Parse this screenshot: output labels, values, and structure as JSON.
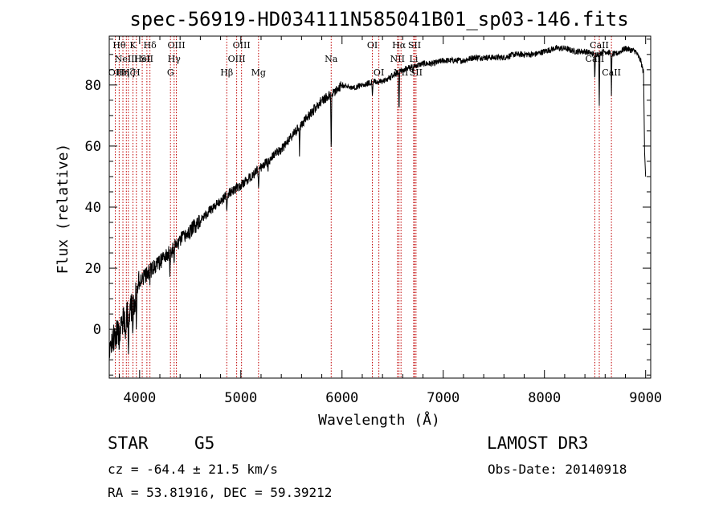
{
  "chart_data": {
    "type": "line",
    "title": "spec-56919-HD034111N585041B01_sp03-146.fits",
    "xlabel": "Wavelength (Å)",
    "ylabel": "Flux (relative)",
    "xlim": [
      3700,
      9050
    ],
    "ylim": [
      -16,
      96
    ],
    "xticks": [
      4000,
      5000,
      6000,
      7000,
      8000,
      9000
    ],
    "yticks": [
      0,
      20,
      40,
      60,
      80
    ],
    "xtick_labels": [
      "4000",
      "5000",
      "6000",
      "7000",
      "8000",
      "9000"
    ],
    "ytick_labels": [
      "0",
      "20",
      "40",
      "60",
      "80"
    ],
    "x_minor_step": 200,
    "y_minor_step": 5,
    "series": [
      {
        "name": "spectrum",
        "anchors": [
          [
            3700,
            -8
          ],
          [
            3750,
            -2
          ],
          [
            3800,
            0
          ],
          [
            3850,
            3
          ],
          [
            3900,
            5
          ],
          [
            3950,
            10
          ],
          [
            4000,
            16
          ],
          [
            4100,
            19
          ],
          [
            4200,
            22
          ],
          [
            4300,
            25
          ],
          [
            4400,
            29
          ],
          [
            4500,
            32
          ],
          [
            4600,
            36
          ],
          [
            4700,
            39
          ],
          [
            4800,
            42
          ],
          [
            4900,
            45
          ],
          [
            5000,
            47
          ],
          [
            5100,
            50
          ],
          [
            5200,
            53
          ],
          [
            5300,
            56
          ],
          [
            5400,
            59
          ],
          [
            5500,
            63
          ],
          [
            5600,
            67
          ],
          [
            5700,
            71
          ],
          [
            5800,
            75
          ],
          [
            5900,
            77
          ],
          [
            6000,
            80
          ],
          [
            6100,
            79
          ],
          [
            6200,
            80
          ],
          [
            6300,
            81
          ],
          [
            6400,
            81
          ],
          [
            6500,
            83
          ],
          [
            6600,
            85
          ],
          [
            6700,
            86
          ],
          [
            6800,
            87
          ],
          [
            6900,
            87
          ],
          [
            7000,
            88
          ],
          [
            7100,
            88
          ],
          [
            7200,
            88
          ],
          [
            7300,
            89
          ],
          [
            7400,
            89
          ],
          [
            7500,
            89
          ],
          [
            7600,
            89
          ],
          [
            7700,
            90
          ],
          [
            7800,
            90
          ],
          [
            7900,
            90
          ],
          [
            8000,
            91
          ],
          [
            8100,
            92
          ],
          [
            8200,
            92
          ],
          [
            8300,
            91
          ],
          [
            8400,
            91
          ],
          [
            8500,
            90
          ],
          [
            8600,
            91
          ],
          [
            8700,
            90
          ],
          [
            8800,
            92
          ],
          [
            8900,
            91
          ],
          [
            8950,
            88
          ],
          [
            8980,
            84
          ]
        ],
        "absorption": [
          [
            3760,
            6
          ],
          [
            3800,
            7
          ],
          [
            3860,
            8
          ],
          [
            3890,
            9
          ],
          [
            3934,
            12
          ],
          [
            3968,
            11
          ],
          [
            4101,
            4
          ],
          [
            4300,
            6
          ],
          [
            4340,
            4
          ],
          [
            4861,
            7
          ],
          [
            5175,
            5
          ],
          [
            5270,
            3
          ],
          [
            5580,
            9
          ],
          [
            5893,
            20
          ],
          [
            6300,
            5
          ],
          [
            6563,
            14
          ],
          [
            6700,
            3
          ],
          [
            8498,
            10
          ],
          [
            8542,
            18
          ],
          [
            8662,
            14
          ]
        ]
      }
    ],
    "lines": [
      {
        "wl": 3760,
        "label": "OII",
        "row": 2
      },
      {
        "wl": 3798,
        "label": "Hθ",
        "row": 0
      },
      {
        "wl": 3835,
        "label": "Hη",
        "row": 2
      },
      {
        "wl": 3869,
        "label": "NeIII",
        "row": 1
      },
      {
        "wl": 3889,
        "label": "Hζ",
        "row": 2
      },
      {
        "wl": 3934,
        "label": "K",
        "row": 0
      },
      {
        "wl": 3968,
        "label": "H",
        "row": 2
      },
      {
        "wl": 4026,
        "label": "HeI",
        "row": 1
      },
      {
        "wl": 4072,
        "label": "SII",
        "row": 1
      },
      {
        "wl": 4102,
        "label": "Hδ",
        "row": 0
      },
      {
        "wl": 4305,
        "label": "G",
        "row": 2
      },
      {
        "wl": 4341,
        "label": "Hγ",
        "row": 1
      },
      {
        "wl": 4363,
        "label": "OIII",
        "row": 0
      },
      {
        "wl": 4861,
        "label": "Hβ",
        "row": 2
      },
      {
        "wl": 4959,
        "label": "OIII",
        "row": 1
      },
      {
        "wl": 5007,
        "label": "OIII",
        "row": 0
      },
      {
        "wl": 5175,
        "label": "Mg",
        "row": 2
      },
      {
        "wl": 5893,
        "label": "Na",
        "row": 1
      },
      {
        "wl": 6300,
        "label": "OI",
        "row": 0
      },
      {
        "wl": 6364,
        "label": "OI",
        "row": 2
      },
      {
        "wl": 6548,
        "label": "NII",
        "row": 1
      },
      {
        "wl": 6563,
        "label": "Hα",
        "row": 0
      },
      {
        "wl": 6583,
        "label": "NII",
        "row": 2
      },
      {
        "wl": 6708,
        "label": "Li",
        "row": 1
      },
      {
        "wl": 6716,
        "label": "SII",
        "row": 0
      },
      {
        "wl": 6731,
        "label": "SII",
        "row": 2
      },
      {
        "wl": 8498,
        "label": "CaII",
        "row": 1
      },
      {
        "wl": 8542,
        "label": "CaII",
        "row": 0
      },
      {
        "wl": 8662,
        "label": "CaII",
        "row": 2
      }
    ]
  },
  "info": {
    "object_class": "STAR",
    "subclass": "G5",
    "survey": "LAMOST DR3",
    "redshift": "cz = -64.4 ± 21.5 km/s",
    "obs_date": "Obs-Date: 20140918",
    "coords": "RA =  53.81916, DEC =  59.39212"
  }
}
